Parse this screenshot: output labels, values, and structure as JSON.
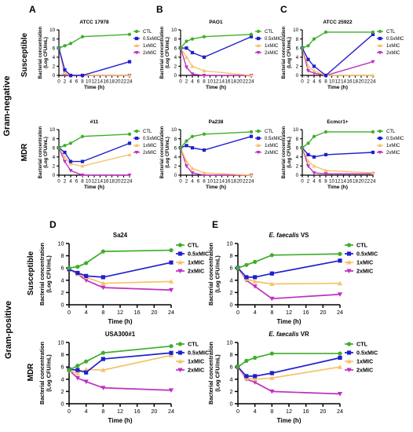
{
  "colors": {
    "CTL": "#3fae2a",
    "0.5xMIC": "#1f1fcf",
    "1xMIC": "#f5c26b",
    "2xMIC": "#c030c0"
  },
  "row_labels": {
    "gram_negative": "Gram-negative",
    "gram_positive": "Gram-positive",
    "susceptible": "Susceptible",
    "mdr": "MDR"
  },
  "chart_data": [
    {
      "panel": "A",
      "type": "line",
      "title": "ATCC 17978",
      "xlabel": "Time (h)",
      "ylabel": "Bacterial concentration\n(Log CFU/mL)",
      "xlim": [
        0,
        24
      ],
      "ylim": [
        0,
        10
      ],
      "xticks": [
        0,
        2,
        4,
        6,
        8,
        10,
        12,
        14,
        16,
        18,
        20,
        22,
        24
      ],
      "yticks": [
        0,
        2,
        4,
        6,
        8,
        10
      ],
      "x": [
        0,
        2,
        4,
        8,
        24
      ],
      "series": [
        {
          "name": "CTL",
          "values": [
            6,
            6.5,
            7,
            8.5,
            9
          ]
        },
        {
          "name": "0.5xMIC",
          "values": [
            6,
            1.2,
            0,
            0,
            3
          ]
        },
        {
          "name": "1xMIC",
          "values": [
            6,
            0.5,
            0,
            0,
            0
          ]
        },
        {
          "name": "2xMIC",
          "values": [
            6,
            0.2,
            0,
            0,
            0
          ]
        }
      ]
    },
    {
      "panel": "B",
      "type": "line",
      "title": "PAO1",
      "xlabel": "Time (h)",
      "ylabel": "Bacterial concentration\n(Log CFU/mL)",
      "xlim": [
        0,
        24
      ],
      "ylim": [
        0,
        10
      ],
      "xticks": [
        0,
        2,
        4,
        6,
        8,
        10,
        12,
        14,
        16,
        18,
        20,
        22,
        24
      ],
      "yticks": [
        0,
        2,
        4,
        6,
        8,
        10
      ],
      "x": [
        0,
        2,
        4,
        8,
        24
      ],
      "series": [
        {
          "name": "CTL",
          "values": [
            6,
            7.5,
            8,
            8.5,
            9
          ]
        },
        {
          "name": "0.5xMIC",
          "values": [
            6,
            6,
            5,
            4,
            8.5
          ]
        },
        {
          "name": "1xMIC",
          "values": [
            6,
            4,
            2,
            1,
            0
          ]
        },
        {
          "name": "2xMIC",
          "values": [
            6,
            1.8,
            0.3,
            0,
            0
          ]
        }
      ]
    },
    {
      "panel": "C",
      "type": "line",
      "title": "ATCC 25922",
      "xlabel": "Time (h)",
      "ylabel": "Bacterial concentration\n(Log CFU/mL)",
      "xlim": [
        0,
        24
      ],
      "ylim": [
        0,
        10
      ],
      "xticks": [
        0,
        2,
        4,
        6,
        8,
        10,
        12,
        14,
        16,
        18,
        20,
        22,
        24
      ],
      "yticks": [
        0,
        2,
        4,
        6,
        8,
        10
      ],
      "x": [
        0,
        2,
        4,
        8,
        24
      ],
      "series": [
        {
          "name": "CTL",
          "values": [
            6,
            6.5,
            8,
            9.5,
            9.5
          ]
        },
        {
          "name": "0.5xMIC",
          "values": [
            6,
            3.5,
            2,
            0,
            9
          ]
        },
        {
          "name": "1xMIC",
          "values": [
            6,
            2,
            1,
            0,
            0
          ]
        },
        {
          "name": "2xMIC",
          "values": [
            6,
            1,
            0.5,
            0,
            3
          ]
        }
      ]
    },
    {
      "panel": "A",
      "type": "line",
      "title": "#11",
      "xlabel": "Time (h)",
      "ylabel": "Bacterial concentration\n(Log CFU/mL)",
      "xlim": [
        0,
        24
      ],
      "ylim": [
        0,
        10
      ],
      "xticks": [
        0,
        2,
        4,
        6,
        8,
        10,
        12,
        14,
        16,
        18,
        20,
        22,
        24
      ],
      "yticks": [
        0,
        2,
        4,
        6,
        8,
        10
      ],
      "x": [
        0,
        2,
        4,
        8,
        24
      ],
      "series": [
        {
          "name": "CTL",
          "values": [
            6,
            6.5,
            7,
            8.5,
            9
          ]
        },
        {
          "name": "0.5xMIC",
          "values": [
            6,
            5,
            3,
            3,
            7
          ]
        },
        {
          "name": "1xMIC",
          "values": [
            6,
            4,
            2.5,
            2,
            4.5
          ]
        },
        {
          "name": "2xMIC",
          "values": [
            6,
            3,
            1,
            0,
            0
          ]
        }
      ]
    },
    {
      "panel": "B",
      "type": "line",
      "title": "Pa238",
      "xlabel": "Time (h)",
      "ylabel": "Bacterial concentration\n(Log CFU/mL)",
      "xlim": [
        0,
        24
      ],
      "ylim": [
        0,
        10
      ],
      "xticks": [
        0,
        2,
        4,
        6,
        8,
        10,
        12,
        14,
        16,
        18,
        20,
        22,
        24
      ],
      "yticks": [
        0,
        2,
        4,
        6,
        8,
        10
      ],
      "x": [
        0,
        2,
        4,
        8,
        24
      ],
      "series": [
        {
          "name": "CTL",
          "values": [
            6,
            7.5,
            8.5,
            9,
            9.5
          ]
        },
        {
          "name": "0.5xMIC",
          "values": [
            6,
            6.5,
            6,
            5.5,
            8.5
          ]
        },
        {
          "name": "1xMIC",
          "values": [
            6,
            3,
            1.5,
            0.5,
            0
          ]
        },
        {
          "name": "2xMIC",
          "values": [
            6,
            2,
            0.5,
            0,
            0
          ]
        }
      ]
    },
    {
      "panel": "C",
      "type": "line",
      "title": "Ecmcr1+",
      "xlabel": "Time (h)",
      "ylabel": "Bacterial concentration\n(Log CFU/mL)",
      "xlim": [
        0,
        24
      ],
      "ylim": [
        0,
        10
      ],
      "xticks": [
        0,
        2,
        4,
        6,
        8,
        10,
        12,
        14,
        16,
        18,
        20,
        22,
        24
      ],
      "yticks": [
        0,
        2,
        4,
        6,
        8,
        10
      ],
      "x": [
        0,
        2,
        4,
        8,
        24
      ],
      "series": [
        {
          "name": "CTL",
          "values": [
            6,
            7,
            8.5,
            9.5,
            9.5
          ]
        },
        {
          "name": "0.5xMIC",
          "values": [
            6,
            4.5,
            4,
            4.5,
            5
          ]
        },
        {
          "name": "1xMIC",
          "values": [
            6,
            3,
            2,
            1,
            0.5
          ]
        },
        {
          "name": "2xMIC",
          "values": [
            6,
            2,
            0.5,
            0.3,
            0.3
          ]
        }
      ]
    },
    {
      "panel": "D",
      "type": "line",
      "title": "Sa24",
      "xlabel": "Time (h)",
      "ylabel": "Bacterial concentration\n(Log CFU/mL)",
      "xlim": [
        0,
        24
      ],
      "ylim": [
        0,
        10
      ],
      "xticks": [
        0,
        4,
        8,
        12,
        16,
        20,
        24
      ],
      "yticks": [
        0,
        2,
        4,
        6,
        8,
        10
      ],
      "x": [
        0,
        2,
        4,
        8,
        24
      ],
      "series": [
        {
          "name": "CTL",
          "values": [
            6,
            6.2,
            6.8,
            8.7,
            8.9
          ]
        },
        {
          "name": "0.5xMIC",
          "values": [
            5.8,
            5.2,
            4.7,
            4.5,
            6.9
          ]
        },
        {
          "name": "1xMIC",
          "values": [
            5.8,
            5.0,
            4.5,
            3.5,
            3.8
          ]
        },
        {
          "name": "2xMIC",
          "values": [
            5.8,
            5.0,
            4.0,
            2.8,
            2.4
          ]
        }
      ]
    },
    {
      "panel": "E",
      "type": "line",
      "title_prefix": "E. faecalis",
      "title_suffix": " VS",
      "xlabel": "Time (h)",
      "ylabel": "Bacterial concentration\n(Log CFU/mL)",
      "xlim": [
        0,
        24
      ],
      "ylim": [
        0,
        10
      ],
      "xticks": [
        0,
        4,
        8,
        12,
        16,
        20,
        24
      ],
      "yticks": [
        0,
        2,
        4,
        6,
        8,
        10
      ],
      "x": [
        0,
        2,
        4,
        8,
        24
      ],
      "series": [
        {
          "name": "CTL",
          "values": [
            6,
            6.5,
            7,
            8.1,
            8.3
          ]
        },
        {
          "name": "0.5xMIC",
          "values": [
            6,
            4.5,
            4.5,
            5.1,
            7.2
          ]
        },
        {
          "name": "1xMIC",
          "values": [
            6,
            4.2,
            3.8,
            3.4,
            3.5
          ]
        },
        {
          "name": "2xMIC",
          "values": [
            6,
            4,
            3,
            1,
            1.7
          ]
        }
      ]
    },
    {
      "panel": "",
      "type": "line",
      "title": "USA300#1",
      "xlabel": "Time (h)",
      "ylabel": "Bacterial concentration\n(Log CFU/mL)",
      "xlim": [
        0,
        24
      ],
      "ylim": [
        0,
        10
      ],
      "xticks": [
        0,
        4,
        8,
        12,
        16,
        20,
        24
      ],
      "yticks": [
        0,
        2,
        4,
        6,
        8,
        10
      ],
      "x": [
        0,
        2,
        4,
        8,
        24
      ],
      "series": [
        {
          "name": "CTL",
          "values": [
            5.5,
            6.2,
            6.9,
            8.3,
            9.4
          ]
        },
        {
          "name": "0.5xMIC",
          "values": [
            5.6,
            5.5,
            5.1,
            7.3,
            8.3
          ]
        },
        {
          "name": "1xMIC",
          "values": [
            5.4,
            5.0,
            5.6,
            5.5,
            7.9
          ]
        },
        {
          "name": "2xMIC",
          "values": [
            5.5,
            4.2,
            3.6,
            2.6,
            2.2
          ]
        }
      ]
    },
    {
      "panel": "",
      "type": "line",
      "title_prefix": "E. faecalis",
      "title_suffix": " VR",
      "xlabel": "Time (h)",
      "ylabel": "Bacterial concentration\n(Log CFU/mL)",
      "xlim": [
        0,
        24
      ],
      "ylim": [
        0,
        10
      ],
      "xticks": [
        0,
        4,
        8,
        12,
        16,
        20,
        24
      ],
      "yticks": [
        0,
        2,
        4,
        6,
        8,
        10
      ],
      "x": [
        0,
        2,
        4,
        8,
        24
      ],
      "series": [
        {
          "name": "CTL",
          "values": [
            6,
            7,
            7.5,
            8.2,
            8.2
          ]
        },
        {
          "name": "0.5xMIC",
          "values": [
            6,
            4.5,
            4.5,
            5,
            7.5
          ]
        },
        {
          "name": "1xMIC",
          "values": [
            6,
            4.2,
            4,
            4.2,
            6
          ]
        },
        {
          "name": "2xMIC",
          "values": [
            6,
            4,
            3.5,
            2,
            1.6
          ]
        }
      ]
    }
  ]
}
